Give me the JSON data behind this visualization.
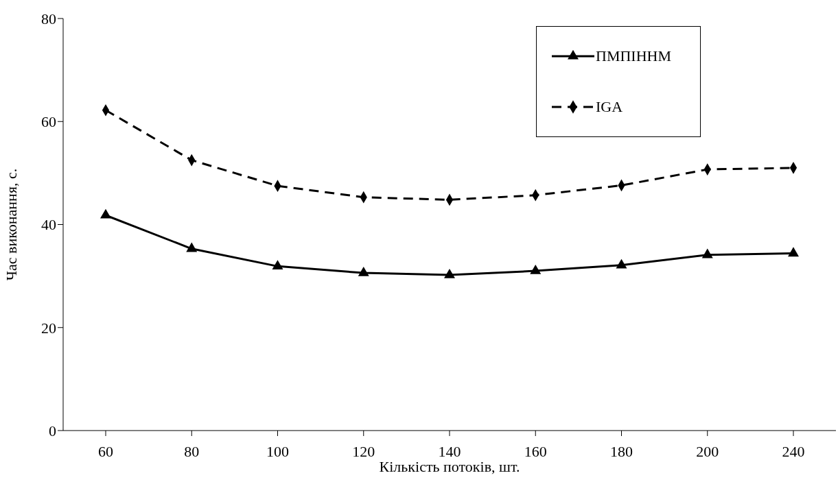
{
  "chart_data": {
    "type": "line",
    "xlabel": "Кількість потоків, шт.",
    "ylabel": "Час виконання, с.",
    "categories": [
      "60",
      "80",
      "100",
      "120",
      "140",
      "160",
      "180",
      "200",
      "240"
    ],
    "series": [
      {
        "name": "ПМПІННМ",
        "color": "#000000",
        "marker": "triangle",
        "line_style": "solid",
        "values": [
          41.8,
          35.3,
          31.9,
          30.6,
          30.2,
          31.0,
          32.1,
          34.1,
          34.4
        ]
      },
      {
        "name": "IGA",
        "color": "#000000",
        "marker": "diamond",
        "line_style": "dashed",
        "values": [
          62.2,
          52.5,
          47.5,
          45.3,
          44.8,
          45.7,
          47.6,
          50.7,
          51.0
        ]
      }
    ],
    "ylim": [
      0,
      80
    ],
    "yticks": [
      0,
      20,
      40,
      60,
      80
    ],
    "grid": false,
    "legend": "top right"
  }
}
